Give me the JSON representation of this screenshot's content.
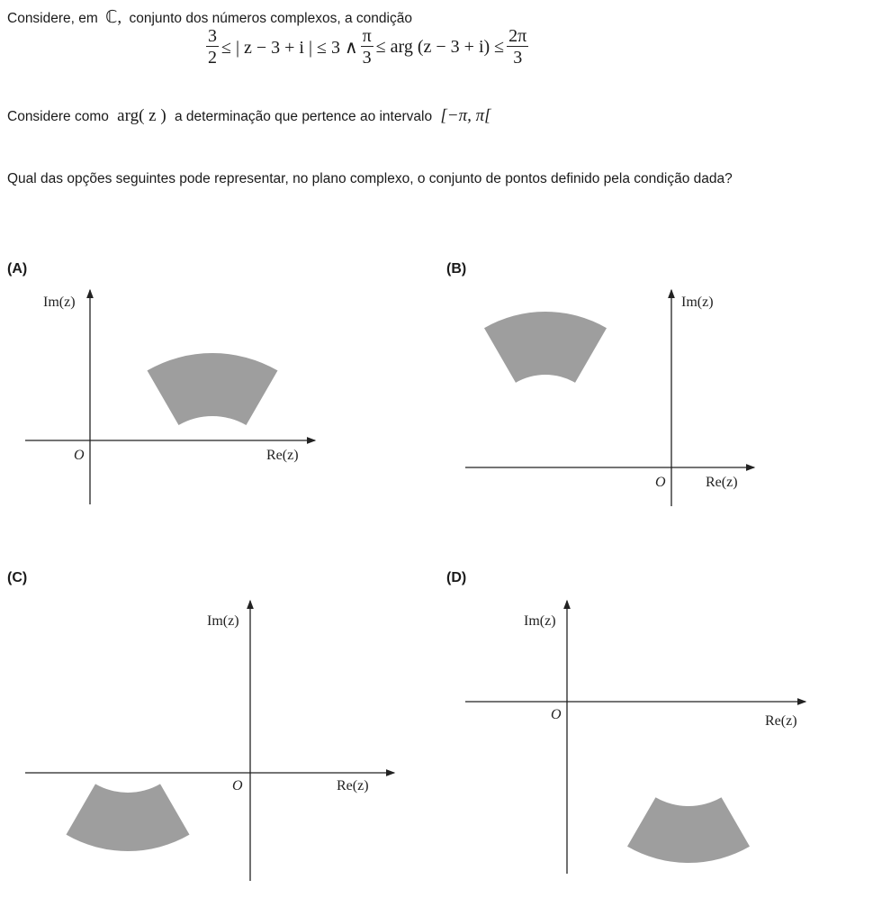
{
  "intro": {
    "before": "Considere, em",
    "set_symbol": "ℂ,",
    "after": "conjunto dos números complexos, a condição"
  },
  "condition": {
    "frac1_num": "3",
    "frac1_den": "2",
    "mid1": "≤ | z − 3 + i | ≤ 3  ∧",
    "frac2_num": "π",
    "frac2_den": "3",
    "mid2": "≤ arg (z − 3 + i) ≤",
    "frac3_num": "2π",
    "frac3_den": "3"
  },
  "arg_note": {
    "before": "Considere como",
    "arg": "arg( z )",
    "after": "a determinação que pertence ao intervalo",
    "interval": "[−π, π["
  },
  "question": "Qual das opções seguintes pode representar, no plano complexo, o conjunto de pontos definido pela condição dada?",
  "options": [
    {
      "label": "(A)",
      "im": "Im(z)",
      "origin": "O",
      "re": "Re(z)"
    },
    {
      "label": "(B)",
      "im": "Im(z)",
      "origin": "O",
      "re": "Re(z)"
    },
    {
      "label": "(C)",
      "im": "Im(z)",
      "origin": "O",
      "re": "Re(z)"
    },
    {
      "label": "(D)",
      "im": "Im(z)",
      "origin": "O",
      "re": "Re(z)"
    }
  ],
  "colors": {
    "region": "#9e9e9e",
    "axis": "#222222"
  }
}
